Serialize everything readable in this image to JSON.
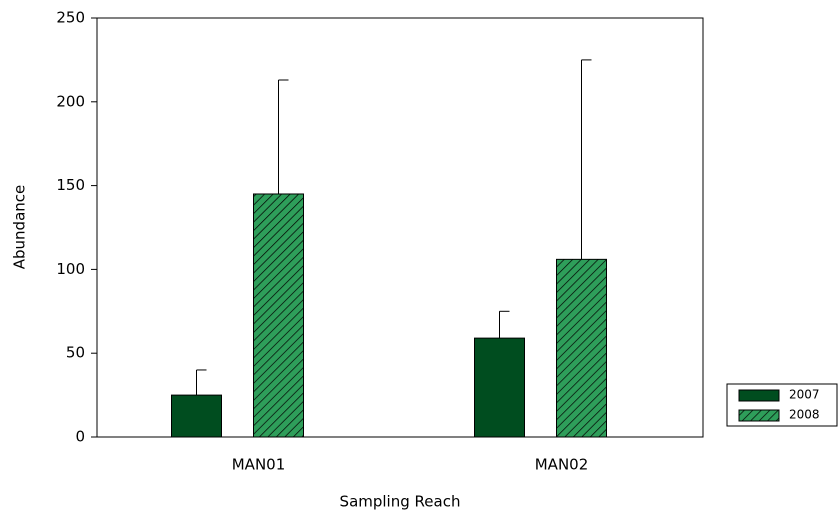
{
  "chart_data": {
    "type": "bar",
    "x_label": "Sampling Reach",
    "y_label": "Abundance",
    "categories": [
      "MAN01",
      "MAN02"
    ],
    "series": [
      {
        "name": "2007",
        "color": "#004d1f",
        "values": [
          25,
          59
        ],
        "errors": [
          15,
          16
        ]
      },
      {
        "name": "2008",
        "color": "#2e9e5a",
        "pattern": "hatch",
        "values": [
          145,
          106
        ],
        "errors": [
          68,
          119
        ]
      }
    ],
    "ylim": [
      0,
      250
    ],
    "yticks": [
      0,
      50,
      100,
      150,
      200,
      250
    ]
  }
}
